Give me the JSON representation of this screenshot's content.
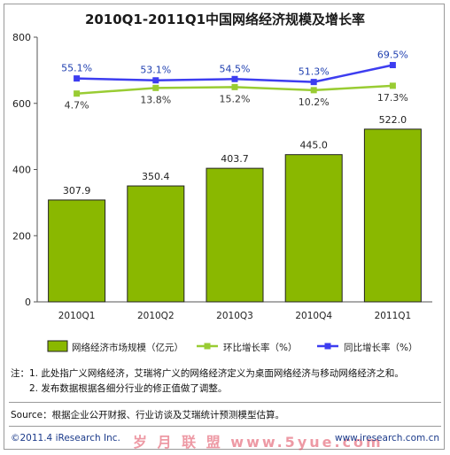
{
  "title": "2010Q1-2011Q1中国网络经济规模及增长率",
  "chart_data": {
    "type": "bar",
    "categories": [
      "2010Q1",
      "2010Q2",
      "2010Q3",
      "2010Q4",
      "2011Q1"
    ],
    "ylim": [
      0,
      800
    ],
    "yticks": [
      "0",
      "200",
      "400",
      "600",
      "800"
    ],
    "bars": {
      "name": "网络经济市场规模（亿元）",
      "values": [
        307.9,
        350.4,
        403.7,
        445.0,
        522.0
      ],
      "labels": [
        "307.9",
        "350.4",
        "403.7",
        "445.0",
        "522.0"
      ],
      "color": "#8ab800"
    },
    "lines": [
      {
        "name": "环比增长率（%）",
        "values": [
          4.7,
          13.8,
          15.2,
          10.2,
          17.3
        ],
        "labels": [
          "4.7%",
          "13.8%",
          "15.2%",
          "10.2%",
          "17.3%"
        ],
        "color": "#99cc33"
      },
      {
        "name": "同比增长率（%）",
        "values": [
          55.1,
          53.1,
          54.5,
          51.3,
          69.5
        ],
        "labels": [
          "55.1%",
          "53.1%",
          "54.5%",
          "51.3%",
          "69.5%"
        ],
        "color": "#3d3df0"
      }
    ],
    "legend_position": "bottom",
    "grid": false
  },
  "notes": {
    "line1": "注：1. 此处指广义网络经济，艾瑞将广义的网络经济定义为桌面网络经济与移动网络经济之和。",
    "line2": "2. 发布数据根据各细分行业的修正值做了调整。"
  },
  "source": "Source：根据企业公开财报、行业访谈及艾瑞统计预测模型估算。",
  "copyright": "©2011.4 iResearch Inc.",
  "website": "www.iresearch.com.cn",
  "watermark": "岁 月 联 盟    www.5yue.com"
}
